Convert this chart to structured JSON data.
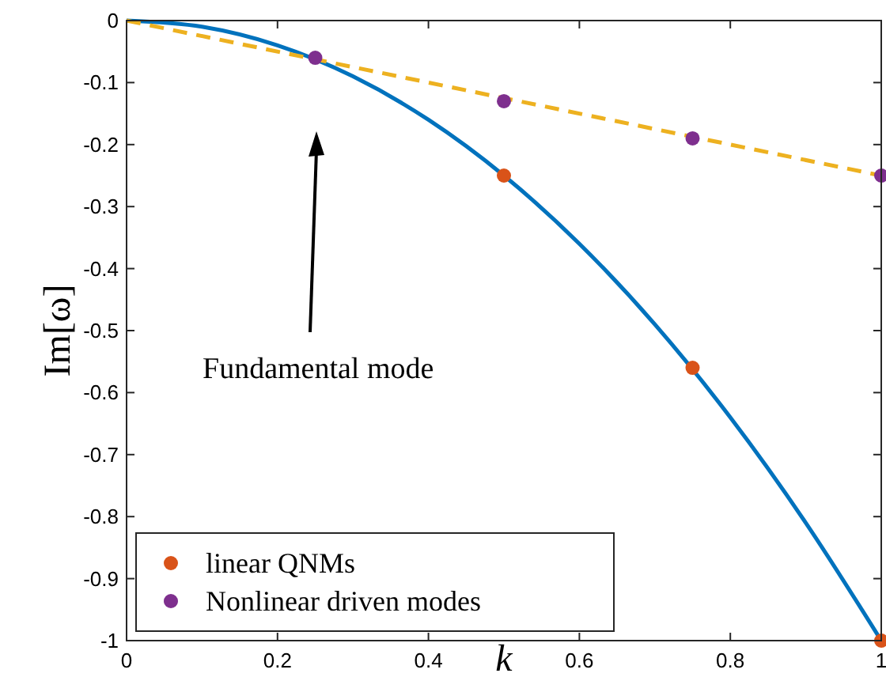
{
  "chart_data": {
    "type": "line",
    "xlabel": "k",
    "ylabel": "Im[ω]",
    "xlim": [
      0,
      1
    ],
    "ylim": [
      -1,
      0
    ],
    "xticks": [
      0,
      0.2,
      0.4,
      0.6,
      0.8,
      1
    ],
    "yticks": [
      -1,
      -0.9,
      -0.8,
      -0.7,
      -0.6,
      -0.5,
      -0.4,
      -0.3,
      -0.2,
      -0.1,
      0
    ],
    "grid": false,
    "legend": "bottom left",
    "annotations": [
      "Fundamental mode"
    ],
    "series": [
      {
        "color": "#0072bd",
        "line_style": "solid",
        "marker": "none",
        "x": [
          0,
          0.1,
          0.2,
          0.3,
          0.4,
          0.5,
          0.6,
          0.7,
          0.8,
          0.9,
          1
        ],
        "values": [
          0,
          -0.01,
          -0.04,
          -0.09,
          -0.16,
          -0.25,
          -0.36,
          -0.49,
          -0.64,
          -0.81,
          -1
        ]
      },
      {
        "color": "#edb120",
        "line_style": "dashed",
        "marker": "none",
        "x": [
          0,
          1
        ],
        "values": [
          0,
          -0.25
        ]
      },
      {
        "type": "scatter",
        "name": "linear QNMs",
        "color": "#d95319",
        "marker": "circle",
        "x": [
          0.5,
          0.75,
          1
        ],
        "values": [
          -0.25,
          -0.56,
          -1
        ]
      },
      {
        "type": "scatter",
        "name": "Nonlinear driven modes",
        "color": "#7e2f8e",
        "marker": "circle",
        "x": [
          0.25,
          0.5,
          0.75,
          1
        ],
        "values": [
          -0.06,
          -0.13,
          -0.19,
          -0.25
        ]
      }
    ]
  }
}
